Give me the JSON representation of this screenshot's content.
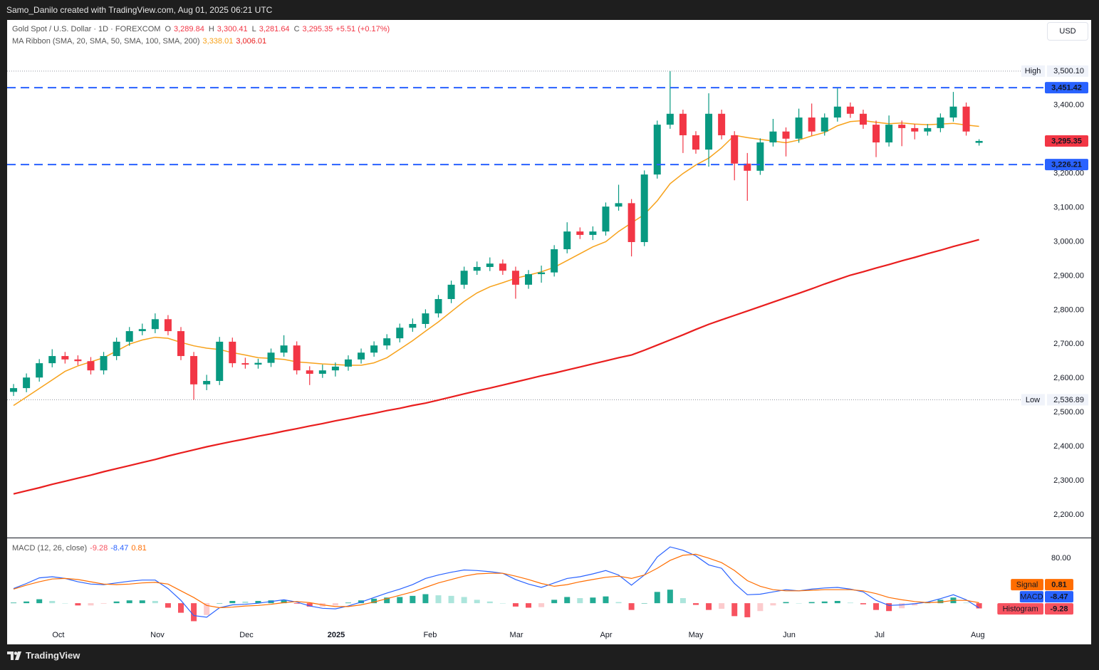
{
  "header": {
    "attribution": "Samo_Danilo created with TradingView.com, Aug 01, 2025 06:21 UTC",
    "footer": "TradingView",
    "currency": "USD"
  },
  "chart_data": [
    {
      "type": "candlestick",
      "title": "Gold Spot / U.S. Dollar · 1D · FOREXCOM",
      "ohlc_legend": [
        [
          "O",
          "3,289.84"
        ],
        [
          "H",
          "3,300.41"
        ],
        [
          "L",
          "3,281.64"
        ],
        [
          "C",
          "3,295.35"
        ]
      ],
      "change": "+5.51 (+0.17%)",
      "up_color": "#089981",
      "down_color": "#f23645",
      "open": [
        2560,
        2571,
        2602,
        2644,
        2665,
        2655,
        2650,
        2623,
        2665,
        2707,
        2738,
        2744,
        2773,
        2738,
        2665,
        2582,
        2592,
        2707,
        2644,
        2640,
        2645,
        2675,
        2696,
        2623,
        2613,
        2623,
        2634,
        2655,
        2675,
        2696,
        2717,
        2748,
        2759,
        2790,
        2832,
        2874,
        2915,
        2926,
        2936,
        2915,
        2874,
        2905,
        2910,
        2978,
        3030,
        3020,
        3030,
        3103,
        3113,
        2999,
        3197,
        3343,
        3375,
        3312,
        3270,
        3375,
        3312,
        3229,
        3208,
        3291,
        3323,
        3302,
        3364,
        3323,
        3364,
        3396,
        3375,
        3343,
        3291,
        3343,
        3333,
        3323,
        3333,
        3364,
        3396,
        3289.84
      ],
      "high": [
        2583,
        2614,
        2656,
        2685,
        2677,
        2667,
        2662,
        2677,
        2719,
        2750,
        2760,
        2790,
        2785,
        2750,
        2677,
        2610,
        2721,
        2719,
        2660,
        2657,
        2687,
        2726,
        2708,
        2635,
        2640,
        2646,
        2667,
        2687,
        2708,
        2729,
        2760,
        2775,
        2802,
        2844,
        2886,
        2927,
        2942,
        2954,
        2948,
        2927,
        2917,
        2930,
        2990,
        3057,
        3042,
        3045,
        3115,
        3167,
        3125,
        3209,
        3355,
        3500.1,
        3387,
        3324,
        3435,
        3387,
        3324,
        3260,
        3303,
        3360,
        3335,
        3390,
        3405,
        3376,
        3451,
        3408,
        3387,
        3355,
        3370,
        3355,
        3345,
        3345,
        3376,
        3439,
        3408,
        3300.41
      ],
      "low": [
        2548,
        2559,
        2590,
        2632,
        2643,
        2638,
        2611,
        2611,
        2653,
        2695,
        2726,
        2732,
        2726,
        2653,
        2536.89,
        2565,
        2580,
        2632,
        2628,
        2628,
        2633,
        2663,
        2611,
        2580,
        2601,
        2605,
        2622,
        2643,
        2663,
        2684,
        2705,
        2736,
        2747,
        2778,
        2820,
        2862,
        2903,
        2914,
        2903,
        2833,
        2862,
        2880,
        2898,
        2966,
        3008,
        3005,
        3018,
        3091,
        2957,
        2987,
        3185,
        3331,
        3260,
        3258,
        3220,
        3300,
        3180,
        3120,
        3196,
        3279,
        3250,
        3290,
        3311,
        3311,
        3352,
        3363,
        3331,
        3248,
        3279,
        3280,
        3300,
        3311,
        3321,
        3352,
        3311,
        3281.64
      ],
      "close": [
        2571,
        2602,
        2644,
        2665,
        2655,
        2650,
        2623,
        2665,
        2707,
        2738,
        2744,
        2773,
        2738,
        2665,
        2582,
        2592,
        2707,
        2644,
        2640,
        2645,
        2675,
        2696,
        2623,
        2613,
        2623,
        2634,
        2655,
        2675,
        2696,
        2717,
        2748,
        2759,
        2790,
        2832,
        2874,
        2915,
        2926,
        2936,
        2915,
        2874,
        2905,
        2910,
        2978,
        3030,
        3020,
        3030,
        3103,
        3113,
        2999,
        3197,
        3343,
        3375,
        3312,
        3270,
        3375,
        3312,
        3229,
        3208,
        3291,
        3323,
        3302,
        3364,
        3323,
        3364,
        3396,
        3375,
        3343,
        3291,
        3343,
        3333,
        3323,
        3333,
        3364,
        3396,
        3323,
        3295.35
      ],
      "last_label": "3,295.35",
      "ma_ribbon": {
        "name": "MA Ribbon (SMA, 20, SMA, 50, SMA, 100, SMA, 200)",
        "series": [
          {
            "color": "#f7a21b",
            "value_label": "3,338.01",
            "values": [
              2520,
              2545,
              2570,
              2595,
              2620,
              2636,
              2648,
              2660,
              2680,
              2700,
              2712,
              2720,
              2717,
              2705,
              2695,
              2688,
              2684,
              2675,
              2668,
              2660,
              2658,
              2655,
              2648,
              2645,
              2642,
              2640,
              2638,
              2638,
              2645,
              2660,
              2685,
              2710,
              2738,
              2765,
              2795,
              2825,
              2850,
              2868,
              2880,
              2893,
              2902,
              2912,
              2925,
              2945,
              2965,
              2985,
              3000,
              3030,
              3055,
              3080,
              3120,
              3170,
              3200,
              3225,
              3245,
              3275,
              3312,
              3305,
              3300,
              3295,
              3290,
              3298,
              3310,
              3320,
              3340,
              3352,
              3355,
              3350,
              3346,
              3348,
              3345,
              3343,
              3345,
              3347,
              3342,
              3338.01
            ]
          },
          {
            "color": "#e91e1e",
            "value_label": "3,006.01",
            "values": [
              2261,
              2270,
              2279,
              2289,
              2298,
              2307,
              2316,
              2326,
              2335,
              2344,
              2353,
              2362,
              2372,
              2381,
              2390,
              2399,
              2407,
              2415,
              2422,
              2430,
              2437,
              2445,
              2452,
              2460,
              2467,
              2475,
              2482,
              2490,
              2497,
              2505,
              2512,
              2520,
              2527,
              2536,
              2545,
              2554,
              2563,
              2571,
              2580,
              2589,
              2598,
              2607,
              2615,
              2624,
              2633,
              2642,
              2651,
              2660,
              2668,
              2682,
              2697,
              2712,
              2727,
              2743,
              2758,
              2771,
              2784,
              2797,
              2810,
              2823,
              2836,
              2849,
              2862,
              2876,
              2889,
              2902,
              2912,
              2923,
              2933,
              2944,
              2954,
              2965,
              2975,
              2986,
              2996,
              3006.01
            ]
          }
        ]
      },
      "price_lines": [
        {
          "value": 3451.42,
          "label": "3,451.42",
          "color": "#2962ff"
        },
        {
          "value": 3226.21,
          "label": "3,226.21",
          "color": "#2962ff"
        }
      ],
      "high_marker": {
        "name": "High",
        "value": 3500.1,
        "label": "3,500.10"
      },
      "low_marker": {
        "name": "Low",
        "value": 2536.89,
        "label": "2,536.89"
      },
      "xlim": [
        -0.5,
        80
      ],
      "ylim": [
        2133,
        3650
      ],
      "yticks": [
        {
          "value": 2200,
          "label": "2,200.00"
        },
        {
          "value": 2300,
          "label": "2,300.00"
        },
        {
          "value": 2400,
          "label": "2,400.00"
        },
        {
          "value": 2500,
          "label": "2,500.00"
        },
        {
          "value": 2600,
          "label": "2,600.00"
        },
        {
          "value": 2700,
          "label": "2,700.00"
        },
        {
          "value": 2800,
          "label": "2,800.00"
        },
        {
          "value": 2900,
          "label": "2,900.00"
        },
        {
          "value": 3000,
          "label": "3,000.00"
        },
        {
          "value": 3100,
          "label": "3,100.00"
        },
        {
          "value": 3200,
          "label": "3,200.00"
        },
        {
          "value": 3400,
          "label": "3,400.00"
        }
      ]
    },
    {
      "type": "macd",
      "title": "MACD (12, 26, close)",
      "series": [
        {
          "name": "Histogram",
          "colors": [
            "#22ab94",
            "#ace5dc",
            "#fccbcd",
            "#f7525f"
          ],
          "values": [
            1,
            3,
            7,
            4,
            0,
            -4,
            -4,
            -1,
            3,
            5,
            5,
            4,
            -8,
            -17,
            -32,
            -21,
            0,
            4,
            3,
            4,
            5,
            5,
            -1,
            -6,
            -6,
            -4,
            1,
            5,
            8,
            10,
            11,
            13,
            16,
            14,
            13,
            11,
            6,
            3,
            0,
            -6,
            -8,
            -7,
            6,
            11,
            9,
            10,
            12,
            2,
            -12,
            0,
            20,
            24,
            9,
            -3,
            -12,
            -10,
            -23,
            -25,
            -14,
            -4,
            2,
            0,
            2,
            3,
            4,
            1,
            -2,
            -12,
            -14,
            -9,
            -4,
            1,
            6,
            10,
            1,
            -9.28
          ]
        },
        {
          "name": "MACD",
          "color": "#2962ff",
          "values": [
            26,
            35,
            45,
            47,
            44,
            38,
            34,
            33,
            36,
            39,
            41,
            41,
            26,
            5,
            -22,
            -25,
            -8,
            -3,
            -2,
            0,
            3,
            6,
            2,
            -5,
            -9,
            -10,
            -5,
            2,
            10,
            18,
            25,
            33,
            44,
            50,
            55,
            59,
            58,
            56,
            53,
            42,
            34,
            28,
            36,
            44,
            47,
            52,
            58,
            50,
            32,
            50,
            82,
            100,
            94,
            84,
            68,
            62,
            35,
            15,
            16,
            20,
            24,
            22,
            25,
            27,
            28,
            25,
            20,
            5,
            -4,
            -3,
            -1,
            2,
            8,
            15,
            6,
            -8.47
          ]
        },
        {
          "name": "Signal",
          "color": "#ff6d00",
          "values": [
            25,
            32,
            38,
            43,
            44,
            42,
            38,
            34,
            33,
            34,
            36,
            37,
            34,
            22,
            10,
            -4,
            -8,
            -7,
            -5,
            -4,
            -2,
            1,
            3,
            1,
            -3,
            -6,
            -6,
            -3,
            2,
            8,
            14,
            20,
            28,
            36,
            42,
            48,
            52,
            53,
            53,
            48,
            42,
            35,
            30,
            33,
            38,
            42,
            46,
            48,
            44,
            50,
            62,
            76,
            85,
            87,
            80,
            72,
            58,
            40,
            30,
            24,
            22,
            22,
            23,
            24,
            24,
            24,
            22,
            17,
            10,
            6,
            3,
            1,
            2,
            5,
            5,
            0.81
          ]
        }
      ],
      "xlim": [
        -0.5,
        80
      ],
      "ylim": [
        -39,
        114
      ],
      "yticks": [
        {
          "value": 80,
          "label": "80.00"
        }
      ],
      "xticks": [
        {
          "value": 3.48,
          "label": "Oct"
        },
        {
          "value": 11.17,
          "label": "Nov"
        },
        {
          "value": 18.09,
          "label": "Dec"
        },
        {
          "value": 25.06,
          "label": "2025"
        },
        {
          "value": 32.36,
          "label": "Feb"
        },
        {
          "value": 39.06,
          "label": "Mar"
        },
        {
          "value": 46.03,
          "label": "Apr"
        },
        {
          "value": 53.0,
          "label": "May"
        },
        {
          "value": 60.25,
          "label": "Jun"
        },
        {
          "value": 67.27,
          "label": "Jul"
        },
        {
          "value": 74.9,
          "label": "Aug"
        }
      ]
    }
  ]
}
